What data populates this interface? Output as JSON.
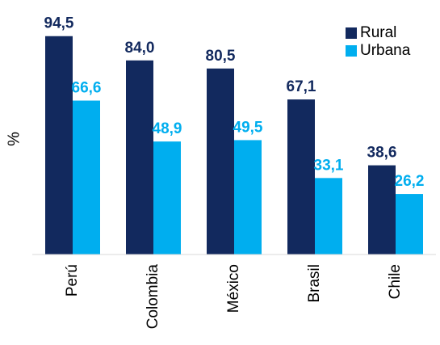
{
  "chart_data": {
    "type": "bar",
    "y_label": "%",
    "categories": [
      "Perú",
      "Colombia",
      "México",
      "Brasil",
      "Chile"
    ],
    "series": [
      {
        "name": "Rural",
        "color": "#12295e",
        "values": [
          94.5,
          84.0,
          80.5,
          67.1,
          38.6
        ],
        "value_labels": [
          "94,5",
          "84,0",
          "80,5",
          "67,1",
          "38,6"
        ]
      },
      {
        "name": "Urbana",
        "color": "#00aeef",
        "values": [
          66.6,
          48.9,
          49.5,
          33.1,
          26.2
        ],
        "value_labels": [
          "66,6",
          "48,9",
          "49,5",
          "33,1",
          "26,2"
        ]
      }
    ],
    "ylim": [
      0,
      100
    ],
    "legend": "top-right"
  }
}
